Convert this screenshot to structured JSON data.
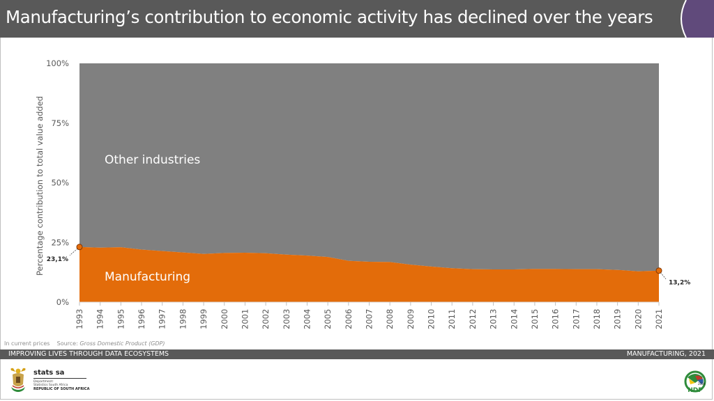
{
  "header": {
    "title": "Manufacturing’s contribution to economic activity has declined over the years"
  },
  "chart_data": {
    "type": "area",
    "stacked": true,
    "percent_stacked": true,
    "title": "Manufacturing’s contribution to economic activity has declined over the years",
    "xlabel": "",
    "ylabel": "Percentage contribution to total value added",
    "ylim": [
      0,
      100
    ],
    "yticks": [
      0,
      25,
      50,
      75,
      100
    ],
    "ytick_labels": [
      "0%",
      "25%",
      "50%",
      "75%",
      "100%"
    ],
    "x": [
      "1993",
      "1994",
      "1995",
      "1996",
      "1997",
      "1998",
      "1999",
      "2000",
      "2001",
      "2002",
      "2003",
      "2004",
      "2005",
      "2006",
      "2007",
      "2008",
      "2009",
      "2010",
      "2011",
      "2012",
      "2013",
      "2014",
      "2015",
      "2016",
      "2017",
      "2018",
      "2019",
      "2020",
      "2021"
    ],
    "series": [
      {
        "name": "Manufacturing",
        "color": "#e36c0a",
        "values": [
          23.1,
          22.8,
          23.0,
          22.0,
          21.4,
          20.8,
          20.2,
          20.6,
          20.7,
          20.5,
          19.9,
          19.5,
          18.9,
          17.3,
          16.9,
          16.8,
          15.7,
          14.9,
          14.2,
          13.8,
          13.7,
          13.7,
          13.9,
          13.9,
          13.8,
          13.8,
          13.5,
          12.9,
          13.2
        ]
      },
      {
        "name": "Other industries",
        "color": "#808080",
        "values": [
          76.9,
          77.2,
          77.0,
          78.0,
          78.6,
          79.2,
          79.8,
          79.4,
          79.3,
          79.5,
          80.1,
          80.5,
          81.1,
          82.7,
          83.1,
          83.2,
          84.3,
          85.1,
          85.8,
          86.2,
          86.3,
          86.3,
          86.1,
          86.1,
          86.2,
          86.2,
          86.5,
          87.1,
          86.8
        ]
      }
    ],
    "annotations": [
      {
        "label": "23,1%",
        "x": "1993",
        "series": "Manufacturing",
        "value": 23.1
      },
      {
        "label": "13,2%",
        "x": "2021",
        "series": "Manufacturing",
        "value": 13.2
      }
    ],
    "area_labels": {
      "manufacturing": "Manufacturing",
      "other": "Other industries"
    },
    "grid": false,
    "legend": "none"
  },
  "footer": {
    "note_prefix": "In current prices",
    "source_label": "Source:",
    "source_title": "Gross Domestic Product (GDP)",
    "band_left": "IMPROVING LIVES THROUGH DATA ECOSYSTEMS",
    "band_right": "MANUFACTURING, 2021"
  },
  "logo": {
    "name": "stats sa",
    "dept_line1": "Department:",
    "dept_line2": "Statistics South Africa",
    "country": "REPUBLIC OF SOUTH AFRICA",
    "ndp": "NDP",
    "ndp_year": "2030"
  },
  "colors": {
    "title_bar": "#595959",
    "accent_purple": "#604a7b",
    "manufacturing": "#e36c0a",
    "other": "#808080",
    "marker": "#c55a11"
  }
}
